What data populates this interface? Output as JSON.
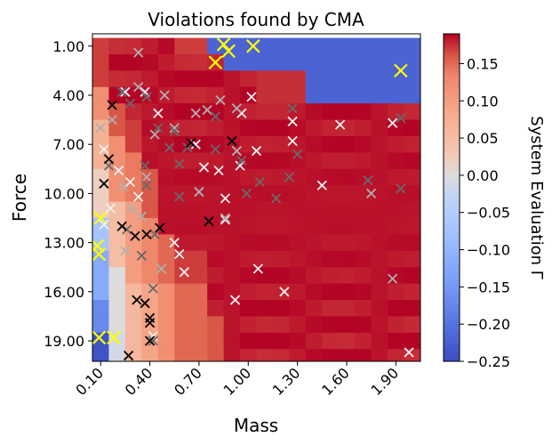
{
  "chart_data": {
    "type": "heatmap",
    "title": "Violations found by CMA",
    "xlabel": "Mass",
    "ylabel": "Force",
    "colorbar_label": "System Evaluation Γ",
    "colormap": "coolwarm",
    "x_range": [
      0.05,
      2.05
    ],
    "y_range": [
      0.25,
      20.25
    ],
    "y_inverted": true,
    "x_ticks": [
      0.1,
      0.4,
      0.7,
      1.0,
      1.3,
      1.6,
      1.9
    ],
    "x_tick_labels": [
      "0.10",
      "0.40",
      "0.70",
      "1.00",
      "1.30",
      "1.60",
      "1.90"
    ],
    "y_ticks": [
      1,
      4,
      7,
      10,
      13,
      16,
      19
    ],
    "y_tick_labels": [
      "1.00",
      "4.00",
      "7.00",
      "10.00",
      "13.00",
      "16.00",
      "19.00"
    ],
    "colorbar_range": [
      -0.25,
      0.19
    ],
    "colorbar_ticks": [
      -0.25,
      -0.2,
      -0.15,
      -0.1,
      -0.05,
      0.0,
      0.05,
      0.1,
      0.15
    ],
    "colorbar_tick_labels": [
      "−0.25",
      "−0.20",
      "−0.15",
      "−0.10",
      "−0.05",
      "0.00",
      "0.05",
      "0.10",
      "0.15"
    ],
    "grid": false,
    "legend": "none",
    "marker_colors": {
      "yellow": "#ffff00",
      "white": "#f2f2f2",
      "lightgray": "#b0b0b0",
      "gray": "#6a6a6a",
      "black": "#000000"
    },
    "violations": [
      {
        "mass": 0.85,
        "force": 0.9,
        "color": "yellow",
        "size": "large"
      },
      {
        "mass": 0.88,
        "force": 1.3,
        "color": "yellow",
        "size": "large"
      },
      {
        "mass": 1.03,
        "force": 1.0,
        "color": "yellow",
        "size": "large"
      },
      {
        "mass": 0.8,
        "force": 2.0,
        "color": "yellow",
        "size": "large"
      },
      {
        "mass": 1.93,
        "force": 2.5,
        "color": "yellow",
        "size": "large"
      },
      {
        "mass": 0.1,
        "force": 11.5,
        "color": "yellow",
        "size": "large"
      },
      {
        "mass": 0.08,
        "force": 13.2,
        "color": "yellow",
        "size": "large"
      },
      {
        "mass": 0.09,
        "force": 13.7,
        "color": "yellow",
        "size": "large"
      },
      {
        "mass": 0.09,
        "force": 18.8,
        "color": "yellow",
        "size": "large"
      },
      {
        "mass": 0.18,
        "force": 18.8,
        "color": "yellow",
        "size": "large"
      },
      {
        "mass": 0.12,
        "force": 7.3,
        "color": "white"
      },
      {
        "mass": 0.25,
        "force": 3.8,
        "color": "white"
      },
      {
        "mass": 0.37,
        "force": 3.8,
        "color": "white"
      },
      {
        "mass": 0.45,
        "force": 5.1,
        "color": "white"
      },
      {
        "mass": 0.68,
        "force": 7.0,
        "color": "white"
      },
      {
        "mass": 0.73,
        "force": 8.4,
        "color": "white"
      },
      {
        "mass": 0.82,
        "force": 8.6,
        "color": "white"
      },
      {
        "mass": 0.95,
        "force": 8.3,
        "color": "white"
      },
      {
        "mass": 1.05,
        "force": 7.4,
        "color": "white"
      },
      {
        "mass": 0.96,
        "force": 5.1,
        "color": "white"
      },
      {
        "mass": 1.02,
        "force": 4.1,
        "color": "white"
      },
      {
        "mass": 1.27,
        "force": 5.6,
        "color": "white"
      },
      {
        "mass": 1.27,
        "force": 6.8,
        "color": "white"
      },
      {
        "mass": 1.45,
        "force": 9.5,
        "color": "white"
      },
      {
        "mass": 1.56,
        "force": 5.8,
        "color": "white"
      },
      {
        "mass": 1.88,
        "force": 5.7,
        "color": "white"
      },
      {
        "mass": 0.86,
        "force": 10.3,
        "color": "white"
      },
      {
        "mass": 0.55,
        "force": 13.0,
        "color": "white"
      },
      {
        "mass": 0.58,
        "force": 13.7,
        "color": "white"
      },
      {
        "mass": 0.61,
        "force": 14.8,
        "color": "white"
      },
      {
        "mass": 0.33,
        "force": 10.2,
        "color": "white"
      },
      {
        "mass": 0.28,
        "force": 9.3,
        "color": "white"
      },
      {
        "mass": 0.21,
        "force": 8.6,
        "color": "white"
      },
      {
        "mass": 0.16,
        "force": 10.9,
        "color": "white"
      },
      {
        "mass": 0.12,
        "force": 11.9,
        "color": "white"
      },
      {
        "mass": 0.92,
        "force": 16.5,
        "color": "white"
      },
      {
        "mass": 1.06,
        "force": 14.6,
        "color": "white"
      },
      {
        "mass": 1.22,
        "force": 16.0,
        "color": "white"
      },
      {
        "mass": 1.98,
        "force": 19.7,
        "color": "white"
      },
      {
        "mass": 0.86,
        "force": 11.6,
        "color": "white"
      },
      {
        "mass": 0.42,
        "force": 18.7,
        "color": "white"
      },
      {
        "mass": 0.1,
        "force": 6.0,
        "color": "lightgray"
      },
      {
        "mass": 0.17,
        "force": 5.5,
        "color": "lightgray"
      },
      {
        "mass": 0.33,
        "force": 3.5,
        "color": "lightgray"
      },
      {
        "mass": 0.43,
        "force": 6.4,
        "color": "lightgray"
      },
      {
        "mass": 0.49,
        "force": 4.0,
        "color": "lightgray"
      },
      {
        "mass": 0.55,
        "force": 6.0,
        "color": "lightgray"
      },
      {
        "mass": 0.68,
        "force": 5.1,
        "color": "lightgray"
      },
      {
        "mass": 0.75,
        "force": 4.9,
        "color": "lightgray"
      },
      {
        "mass": 0.83,
        "force": 4.3,
        "color": "lightgray"
      },
      {
        "mass": 0.93,
        "force": 4.8,
        "color": "lightgray"
      },
      {
        "mass": 0.93,
        "force": 7.4,
        "color": "lightgray"
      },
      {
        "mass": 0.38,
        "force": 9.0,
        "color": "lightgray"
      },
      {
        "mass": 0.29,
        "force": 10.9,
        "color": "lightgray"
      },
      {
        "mass": 0.24,
        "force": 9.6,
        "color": "lightgray"
      },
      {
        "mass": 0.35,
        "force": 11.4,
        "color": "lightgray"
      },
      {
        "mass": 0.47,
        "force": 14.6,
        "color": "lightgray"
      },
      {
        "mass": 0.25,
        "force": 13.5,
        "color": "lightgray"
      },
      {
        "mass": 1.75,
        "force": 10.0,
        "color": "lightgray"
      },
      {
        "mass": 1.88,
        "force": 15.2,
        "color": "lightgray"
      },
      {
        "mass": 0.33,
        "force": 1.4,
        "color": "lightgray"
      },
      {
        "mass": 0.86,
        "force": 11.5,
        "color": "lightgray"
      },
      {
        "mass": 0.7,
        "force": 9.9,
        "color": "lightgray"
      },
      {
        "mass": 0.23,
        "force": 3.8,
        "color": "gray"
      },
      {
        "mass": 0.28,
        "force": 4.5,
        "color": "gray"
      },
      {
        "mass": 0.38,
        "force": 4.1,
        "color": "gray"
      },
      {
        "mass": 0.45,
        "force": 6.0,
        "color": "gray"
      },
      {
        "mass": 0.55,
        "force": 6.2,
        "color": "gray"
      },
      {
        "mass": 0.52,
        "force": 7.2,
        "color": "gray"
      },
      {
        "mass": 0.58,
        "force": 8.2,
        "color": "gray"
      },
      {
        "mass": 0.37,
        "force": 8.3,
        "color": "gray"
      },
      {
        "mass": 0.38,
        "force": 9.5,
        "color": "gray"
      },
      {
        "mass": 0.58,
        "force": 10.2,
        "color": "gray"
      },
      {
        "mass": 0.63,
        "force": 7.2,
        "color": "gray"
      },
      {
        "mass": 0.8,
        "force": 5.3,
        "color": "gray"
      },
      {
        "mass": 0.8,
        "force": 7.3,
        "color": "gray"
      },
      {
        "mass": 0.96,
        "force": 8.0,
        "color": "gray"
      },
      {
        "mass": 0.99,
        "force": 10.0,
        "color": "gray"
      },
      {
        "mass": 1.07,
        "force": 9.3,
        "color": "gray"
      },
      {
        "mass": 1.17,
        "force": 10.3,
        "color": "gray"
      },
      {
        "mass": 1.27,
        "force": 4.8,
        "color": "gray"
      },
      {
        "mass": 1.3,
        "force": 7.6,
        "color": "gray"
      },
      {
        "mass": 1.25,
        "force": 9.0,
        "color": "gray"
      },
      {
        "mass": 1.73,
        "force": 9.2,
        "color": "gray"
      },
      {
        "mass": 1.93,
        "force": 9.7,
        "color": "gray"
      },
      {
        "mass": 1.93,
        "force": 5.4,
        "color": "gray"
      },
      {
        "mass": 0.43,
        "force": 12.5,
        "color": "gray"
      },
      {
        "mass": 0.35,
        "force": 13.8,
        "color": "gray"
      },
      {
        "mass": 0.42,
        "force": 15.8,
        "color": "gray"
      },
      {
        "mass": 0.15,
        "force": 8.3,
        "color": "gray"
      },
      {
        "mass": 0.26,
        "force": 12.2,
        "color": "gray"
      },
      {
        "mass": 0.42,
        "force": 19.0,
        "color": "gray"
      },
      {
        "mass": 0.17,
        "force": 4.6,
        "color": "black"
      },
      {
        "mass": 0.15,
        "force": 7.9,
        "color": "black"
      },
      {
        "mass": 0.12,
        "force": 9.4,
        "color": "black"
      },
      {
        "mass": 0.23,
        "force": 12.0,
        "color": "black"
      },
      {
        "mass": 0.31,
        "force": 12.6,
        "color": "black"
      },
      {
        "mass": 0.38,
        "force": 12.5,
        "color": "black"
      },
      {
        "mass": 0.46,
        "force": 12.1,
        "color": "black"
      },
      {
        "mass": 0.32,
        "force": 16.5,
        "color": "black"
      },
      {
        "mass": 0.37,
        "force": 16.7,
        "color": "black"
      },
      {
        "mass": 0.4,
        "force": 17.6,
        "color": "black"
      },
      {
        "mass": 0.4,
        "force": 17.9,
        "color": "black"
      },
      {
        "mass": 0.4,
        "force": 19.0,
        "color": "black"
      },
      {
        "mass": 0.27,
        "force": 19.9,
        "color": "black"
      },
      {
        "mass": 0.65,
        "force": 6.9,
        "color": "black"
      },
      {
        "mass": 0.9,
        "force": 6.8,
        "color": "black"
      },
      {
        "mass": 0.76,
        "force": 11.7,
        "color": "black"
      }
    ]
  }
}
